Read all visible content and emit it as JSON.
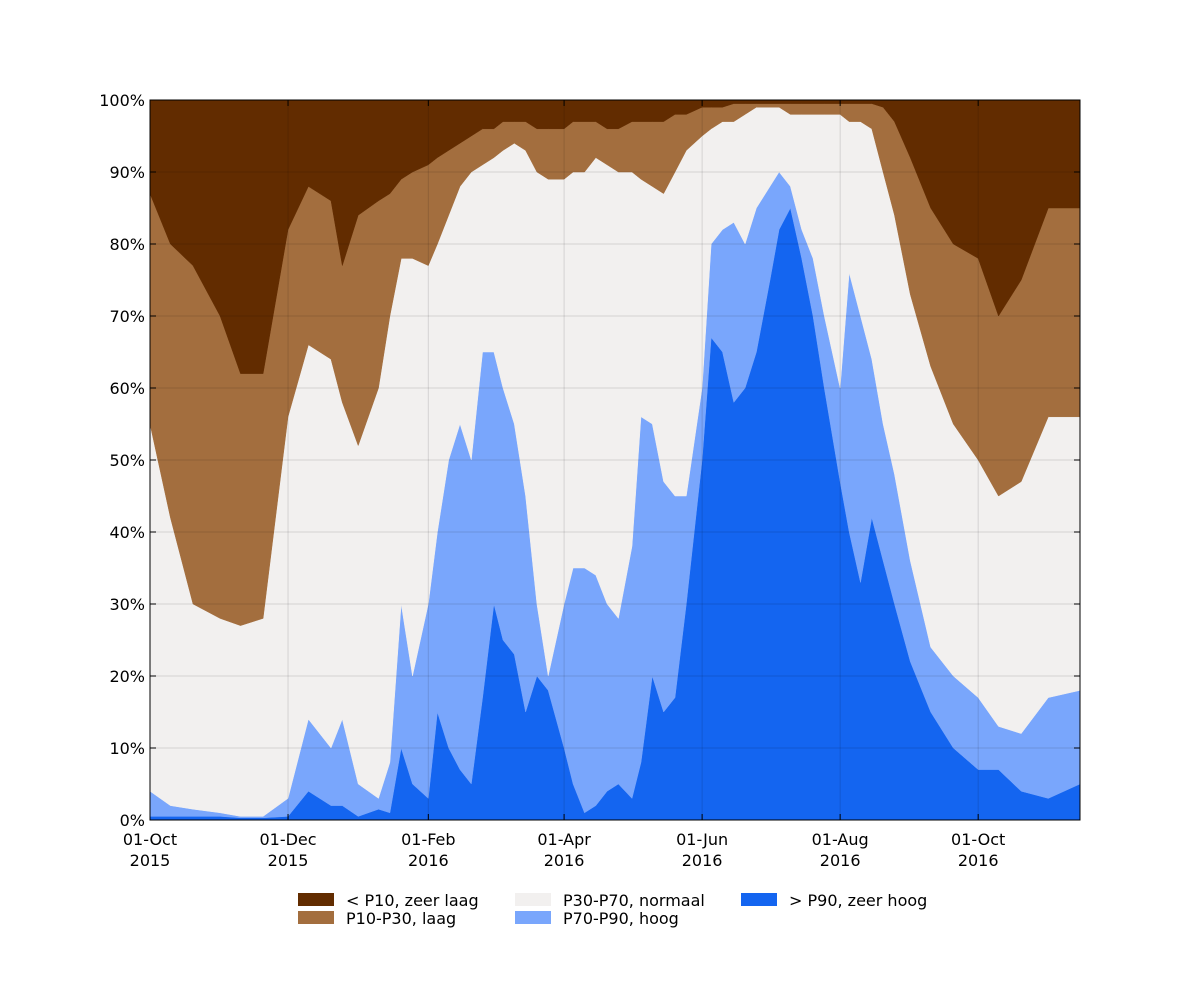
{
  "chart_data": {
    "type": "area",
    "stacked": true,
    "percent": true,
    "x_start": "2015-10-01",
    "x_end": "2016-11-15",
    "xlim": [
      "2015-10-01",
      "2016-11-15"
    ],
    "ylim": [
      0,
      100
    ],
    "grid": true,
    "legend_position": "bottom",
    "title": "",
    "xlabel": "",
    "ylabel": "",
    "x_ticks": [
      {
        "date": "2015-10-01",
        "line1": "01-Oct",
        "line2": "2015"
      },
      {
        "date": "2015-12-01",
        "line1": "01-Dec",
        "line2": "2015"
      },
      {
        "date": "2016-02-01",
        "line1": "01-Feb",
        "line2": "2016"
      },
      {
        "date": "2016-04-01",
        "line1": "01-Apr",
        "line2": "2016"
      },
      {
        "date": "2016-06-01",
        "line1": "01-Jun",
        "line2": "2016"
      },
      {
        "date": "2016-08-01",
        "line1": "01-Aug",
        "line2": "2016"
      },
      {
        "date": "2016-10-01",
        "line1": "01-Oct",
        "line2": "2016"
      }
    ],
    "y_ticks": [
      {
        "value": 0,
        "label": "0%"
      },
      {
        "value": 10,
        "label": "10%"
      },
      {
        "value": 20,
        "label": "20%"
      },
      {
        "value": 30,
        "label": "30%"
      },
      {
        "value": 40,
        "label": "40%"
      },
      {
        "value": 50,
        "label": "50%"
      },
      {
        "value": 60,
        "label": "60%"
      },
      {
        "value": 70,
        "label": "70%"
      },
      {
        "value": 80,
        "label": "80%"
      },
      {
        "value": 90,
        "label": "90%"
      },
      {
        "value": 100,
        "label": "100%"
      }
    ],
    "series_order_bottom_to_top": [
      "> P90, zeer hoog",
      "P70-P90, hoog",
      "P30-P70, normaal",
      "P10-P30, laag",
      "< P10, zeer laag"
    ],
    "series": [
      {
        "name": "< P10, zeer laag",
        "color": "#622c00"
      },
      {
        "name": "P10-P30, laag",
        "color": "#a36e3e"
      },
      {
        "name": "P30-P70, normaal",
        "color": "#f2f0ef"
      },
      {
        "name": "P70-P90, hoog",
        "color": "#79a6fc"
      },
      {
        "name": "> P90, zeer hoog",
        "color": "#1465f0"
      }
    ],
    "cumulative_boundaries": {
      "description": "cumulative percent from bottom at each date; b1 = top of > P90, b2 = top of P70-P90, b3 = top of P30-P70, b4 = top of P10-P30",
      "dates": [
        "2015-10-01",
        "2015-10-10",
        "2015-10-20",
        "2015-11-01",
        "2015-11-10",
        "2015-11-20",
        "2015-12-01",
        "2015-12-10",
        "2015-12-20",
        "2015-12-25",
        "2016-01-01",
        "2016-01-10",
        "2016-01-15",
        "2016-01-20",
        "2016-01-25",
        "2016-02-01",
        "2016-02-05",
        "2016-02-10",
        "2016-02-15",
        "2016-02-20",
        "2016-02-25",
        "2016-03-01",
        "2016-03-05",
        "2016-03-10",
        "2016-03-15",
        "2016-03-20",
        "2016-03-25",
        "2016-04-01",
        "2016-04-05",
        "2016-04-10",
        "2016-04-15",
        "2016-04-20",
        "2016-04-25",
        "2016-05-01",
        "2016-05-05",
        "2016-05-10",
        "2016-05-15",
        "2016-05-20",
        "2016-05-25",
        "2016-06-01",
        "2016-06-05",
        "2016-06-10",
        "2016-06-15",
        "2016-06-20",
        "2016-06-25",
        "2016-07-01",
        "2016-07-05",
        "2016-07-10",
        "2016-07-15",
        "2016-07-20",
        "2016-07-25",
        "2016-08-01",
        "2016-08-05",
        "2016-08-10",
        "2016-08-15",
        "2016-08-20",
        "2016-08-25",
        "2016-09-01",
        "2016-09-10",
        "2016-09-20",
        "2016-10-01",
        "2016-10-10",
        "2016-10-20",
        "2016-11-01",
        "2016-11-15"
      ],
      "b1": [
        0.5,
        0.5,
        0.5,
        0.5,
        0.3,
        0.3,
        0.5,
        4,
        2,
        2,
        0.5,
        1.5,
        1,
        10,
        5,
        3,
        15,
        10,
        7,
        5,
        17,
        30,
        25,
        23,
        15,
        20,
        18,
        10,
        5,
        1,
        2,
        4,
        5,
        3,
        8,
        20,
        15,
        17,
        30,
        50,
        67,
        65,
        58,
        60,
        65,
        75,
        82,
        85,
        78,
        70,
        60,
        47,
        40,
        33,
        42,
        36,
        30,
        22,
        15,
        10,
        7,
        7,
        4,
        3,
        5
      ],
      "b2": [
        4,
        2,
        1.5,
        1,
        0.5,
        0.5,
        3,
        14,
        10,
        14,
        5,
        3,
        8,
        30,
        20,
        30,
        40,
        50,
        55,
        50,
        65,
        65,
        60,
        55,
        45,
        30,
        20,
        30,
        35,
        35,
        34,
        30,
        28,
        38,
        56,
        55,
        47,
        45,
        45,
        60,
        80,
        82,
        83,
        80,
        85,
        88,
        90,
        88,
        82,
        78,
        70,
        60,
        76,
        70,
        64,
        55,
        48,
        36,
        24,
        20,
        17,
        13,
        12,
        17,
        18
      ],
      "b3": [
        55,
        42,
        30,
        28,
        27,
        28,
        56,
        66,
        64,
        58,
        52,
        60,
        70,
        78,
        78,
        77,
        80,
        84,
        88,
        90,
        91,
        92,
        93,
        94,
        93,
        90,
        89,
        89,
        90,
        90,
        92,
        91,
        90,
        90,
        89,
        88,
        87,
        90,
        93,
        95,
        96,
        97,
        97,
        98,
        99,
        99,
        99,
        98,
        98,
        98,
        98,
        98,
        97,
        97,
        96,
        90,
        84,
        73,
        63,
        55,
        50,
        45,
        47,
        56,
        56
      ],
      "b4": [
        87,
        80,
        77,
        70,
        62,
        62,
        82,
        88,
        86,
        77,
        84,
        86,
        87,
        89,
        90,
        91,
        92,
        93,
        94,
        95,
        96,
        96,
        97,
        97,
        97,
        96,
        96,
        96,
        97,
        97,
        97,
        96,
        96,
        97,
        97,
        97,
        97,
        98,
        98,
        99,
        99,
        99,
        99.5,
        99.5,
        99.5,
        99.5,
        99.5,
        99.5,
        99.5,
        99.5,
        99.5,
        99.5,
        99.5,
        99.5,
        99.5,
        99,
        97,
        92,
        85,
        80,
        78,
        70,
        75,
        85,
        85
      ]
    }
  }
}
